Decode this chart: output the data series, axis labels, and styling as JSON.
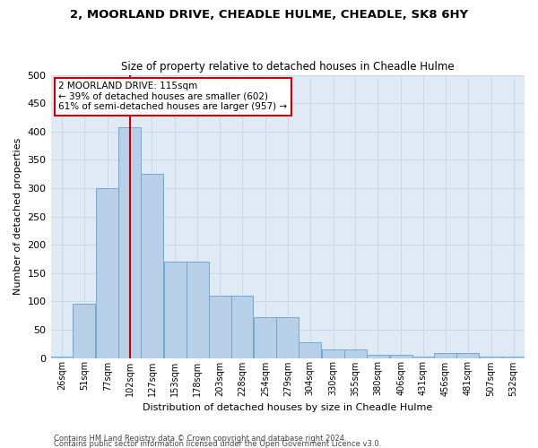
{
  "title1": "2, MOORLAND DRIVE, CHEADLE HULME, CHEADLE, SK8 6HY",
  "title2": "Size of property relative to detached houses in Cheadle Hulme",
  "xlabel": "Distribution of detached houses by size in Cheadle Hulme",
  "ylabel": "Number of detached properties",
  "bin_labels": [
    "26sqm",
    "51sqm",
    "77sqm",
    "102sqm",
    "127sqm",
    "153sqm",
    "178sqm",
    "203sqm",
    "228sqm",
    "254sqm",
    "279sqm",
    "304sqm",
    "330sqm",
    "355sqm",
    "380sqm",
    "406sqm",
    "431sqm",
    "456sqm",
    "481sqm",
    "507sqm",
    "532sqm"
  ],
  "bar_heights": [
    3,
    95,
    300,
    407,
    325,
    170,
    170,
    110,
    110,
    72,
    72,
    28,
    15,
    15,
    5,
    5,
    3,
    8,
    8,
    2,
    2
  ],
  "bar_color": "#b8cfe8",
  "bar_edge_color": "#6faad4",
  "grid_color": "#c8d8e8",
  "bg_color": "#e0eaf4",
  "property_line_x": 115,
  "property_line_color": "#cc0000",
  "annotation_text": "2 MOORLAND DRIVE: 115sqm\n← 39% of detached houses are smaller (602)\n61% of semi-detached houses are larger (957) →",
  "annotation_box_color": "#ffffff",
  "annotation_box_edge": "#cc0000",
  "footer1": "Contains HM Land Registry data © Crown copyright and database right 2024.",
  "footer2": "Contains public sector information licensed under the Open Government Licence v3.0.",
  "ylim": [
    0,
    500
  ],
  "bin_lefts": [
    26,
    51,
    77,
    102,
    127,
    153,
    178,
    203,
    228,
    254,
    279,
    304,
    330,
    355,
    380,
    406,
    431,
    456,
    481,
    507,
    532
  ],
  "bin_width": 25
}
